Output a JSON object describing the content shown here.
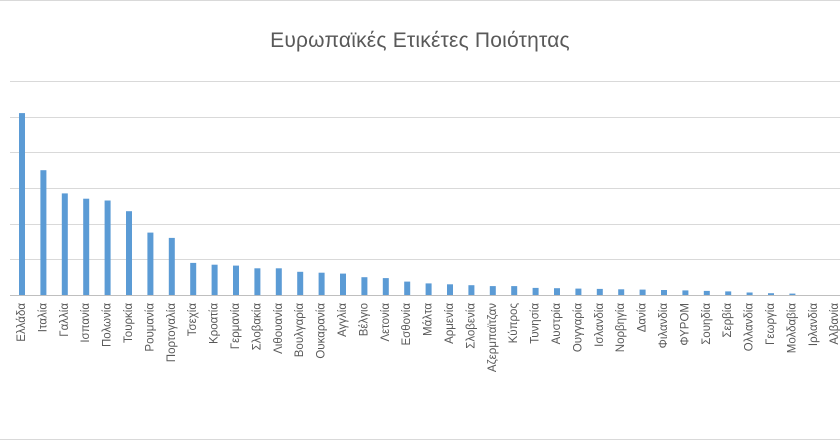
{
  "chart_data": {
    "type": "bar",
    "title": "Ευρωπαϊκές Ετικέτες Ποιότητας",
    "xlabel": "",
    "ylabel": "",
    "categories": [
      "Ελλάδα",
      "Ιταλία",
      "Γαλλία",
      "Ισπανία",
      "Πολωνία",
      "Τουρκία",
      "Ρουμανία",
      "Πορτογαλία",
      "Τσεχία",
      "Κροατία",
      "Γερμανία",
      "Σλοβακία",
      "Λιθουανία",
      "Βουλγαρία",
      "Ουκαρανία",
      "Αγγλία",
      "Βέλγιο",
      "Λετονία",
      "Εσθονία",
      "Μάλτα",
      "Αρμενία",
      "Σλοβενία",
      "Αζερμπαϊτζαν",
      "Κύπρος",
      "Τυνησία",
      "Αυστρία",
      "Ουγγαρία",
      "Ισλανδία",
      "Νορβηγία",
      "Δανία",
      "Φιλανδία",
      "ΦΥΡΟΜ",
      "Σουηδία",
      "Σερβία",
      "Ολλανδία",
      "Γεωργία",
      "Μολδαβία",
      "Ιρλανδία",
      "Αλβανία"
    ],
    "values": [
      102,
      70,
      57,
      54,
      53,
      47,
      35,
      32,
      18,
      17,
      16.5,
      15,
      15,
      13,
      12.5,
      12,
      10,
      9.5,
      7.5,
      6.5,
      6,
      5.5,
      5,
      5,
      4,
      3.8,
      3.6,
      3.4,
      3.2,
      3,
      2.8,
      2.6,
      2.3,
      2,
      1.4,
      1,
      0.8,
      0,
      0
    ],
    "ylim": [
      0,
      120
    ],
    "gridlines": [
      0,
      20,
      40,
      60,
      80,
      100,
      120
    ],
    "grid": true,
    "legend": "none",
    "bar_color": "#5b9bd5",
    "grid_color": "#d9d9d9",
    "label_color": "#595959"
  }
}
